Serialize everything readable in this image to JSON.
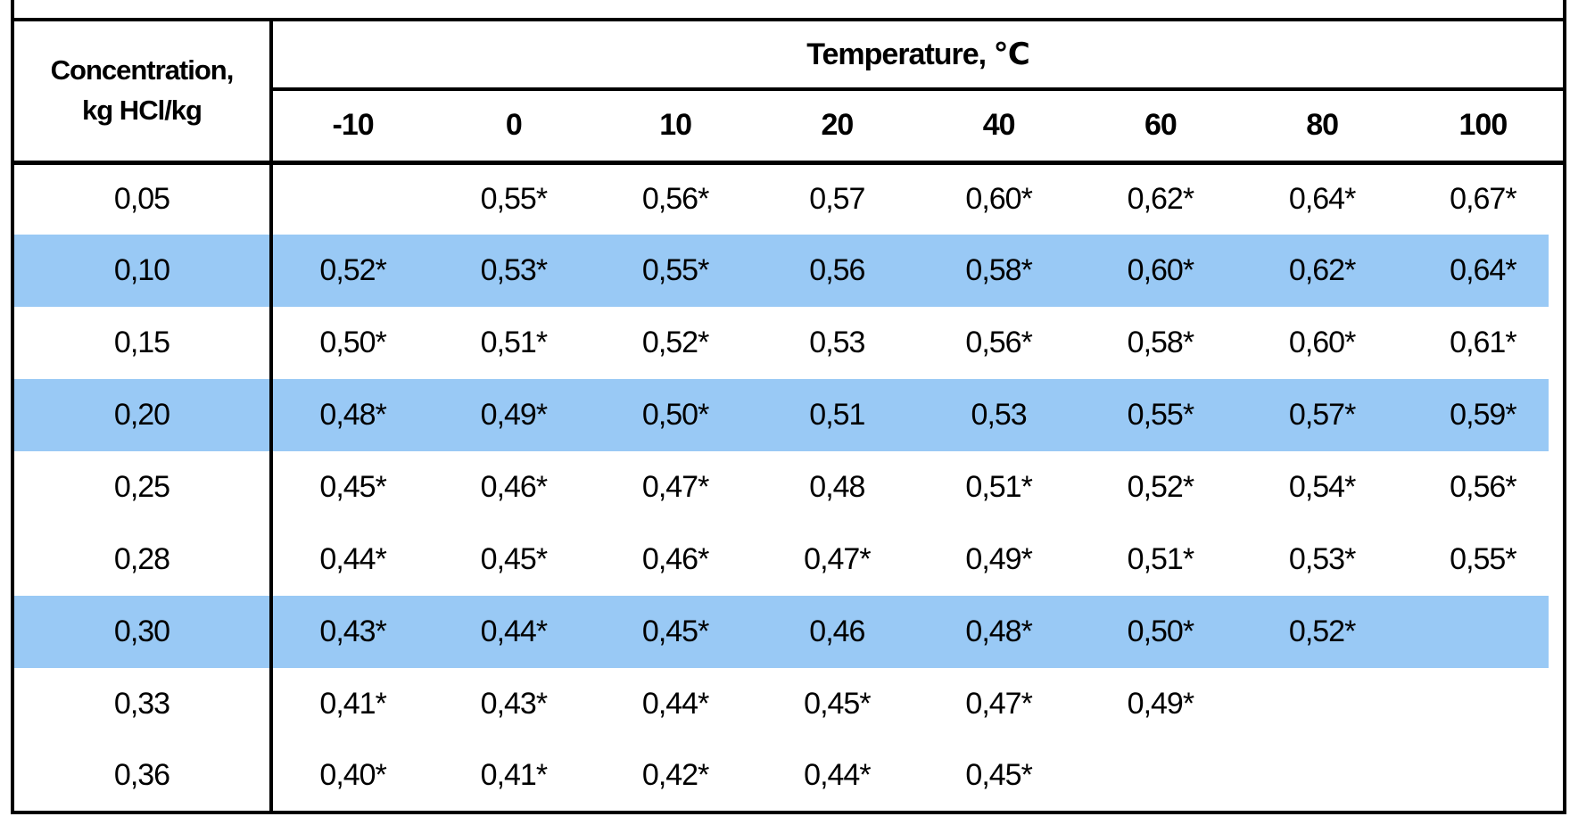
{
  "table": {
    "corner_header_line1": "Concentration,",
    "corner_header_line2": "kg HCl/kg",
    "temperature_header": "Temperature, ℃",
    "temperature_columns": [
      "-10",
      "0",
      "10",
      "20",
      "40",
      "60",
      "80",
      "100"
    ],
    "highlight_color": "#99c9f5",
    "text_color": "#000000",
    "border_color": "#000000",
    "rows": [
      {
        "concentration": "0,05",
        "highlighted": false,
        "values": [
          "",
          "0,55*",
          "0,56*",
          "0,57",
          "0,60*",
          "0,62*",
          "0,64*",
          "0,67*"
        ]
      },
      {
        "concentration": "0,10",
        "highlighted": true,
        "values": [
          "0,52*",
          "0,53*",
          "0,55*",
          "0,56",
          "0,58*",
          "0,60*",
          "0,62*",
          "0,64*"
        ]
      },
      {
        "concentration": "0,15",
        "highlighted": false,
        "values": [
          "0,50*",
          "0,51*",
          "0,52*",
          "0,53",
          "0,56*",
          "0,58*",
          "0,60*",
          "0,61*"
        ]
      },
      {
        "concentration": "0,20",
        "highlighted": true,
        "values": [
          "0,48*",
          "0,49*",
          "0,50*",
          "0,51",
          "0,53",
          "0,55*",
          "0,57*",
          "0,59*"
        ]
      },
      {
        "concentration": "0,25",
        "highlighted": false,
        "values": [
          "0,45*",
          "0,46*",
          "0,47*",
          "0,48",
          "0,51*",
          "0,52*",
          "0,54*",
          "0,56*"
        ]
      },
      {
        "concentration": "0,28",
        "highlighted": false,
        "values": [
          "0,44*",
          "0,45*",
          "0,46*",
          "0,47*",
          "0,49*",
          "0,51*",
          "0,53*",
          "0,55*"
        ]
      },
      {
        "concentration": "0,30",
        "highlighted": true,
        "values": [
          "0,43*",
          "0,44*",
          "0,45*",
          "0,46",
          "0,48*",
          "0,50*",
          "0,52*",
          ""
        ]
      },
      {
        "concentration": "0,33",
        "highlighted": false,
        "values": [
          "0,41*",
          "0,43*",
          "0,44*",
          "0,45*",
          "0,47*",
          "0,49*",
          "",
          ""
        ]
      },
      {
        "concentration": "0,36",
        "highlighted": false,
        "values": [
          "0,40*",
          "0,41*",
          "0,42*",
          "0,44*",
          "0,45*",
          "",
          "",
          ""
        ]
      }
    ]
  }
}
